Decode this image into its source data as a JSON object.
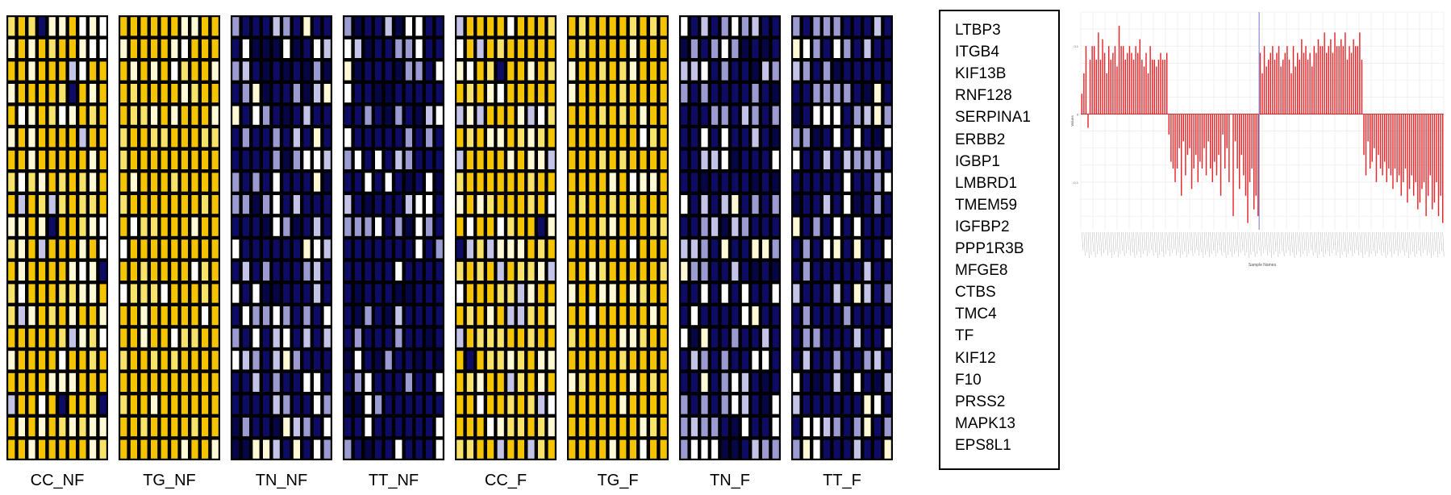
{
  "colors": {
    "yellow": "#f5c400",
    "light_yellow": "#f7e36a",
    "pale": "#fff9d6",
    "white": "#ffffff",
    "lavender": "#9b9bd2",
    "light_lavender": "#c4c4e8",
    "navy": "#0d0b63",
    "dark_navy": "#060545",
    "bar_red": "#e8262a",
    "vline": "#8c8ccf",
    "grid": "#e8e8e8"
  },
  "heatmap": {
    "rows": 20,
    "cols": 10,
    "panels": [
      {
        "label": "CC_NF",
        "dominance": "yellow"
      },
      {
        "label": "TG_NF",
        "dominance": "yellow-strong"
      },
      {
        "label": "TN_NF",
        "dominance": "navy"
      },
      {
        "label": "TT_NF",
        "dominance": "navy-strong"
      },
      {
        "label": "CC_F",
        "dominance": "yellow"
      },
      {
        "label": "TG_F",
        "dominance": "yellow-strong"
      },
      {
        "label": "TN_F",
        "dominance": "navy"
      },
      {
        "label": "TT_F",
        "dominance": "navy"
      }
    ]
  },
  "genes": [
    "LTBP3",
    "ITGB4",
    "KIF13B",
    "RNF128",
    "SERPINA1",
    "ERBB2",
    "IGBP1",
    "LMBRD1",
    "TMEM59",
    "IGFBP2",
    "PPP1R3B",
    "MFGE8",
    "CTBS",
    "TMC4",
    "TF",
    "KIF12",
    "F10",
    "PRSS2",
    "MAPK13",
    "EPS8L1"
  ],
  "chart_data": {
    "type": "bar",
    "title": "",
    "xlabel": "Sample Names",
    "ylabel": "Values",
    "ylim": [
      -0.17,
      0.15
    ],
    "yticks": [
      -0.1,
      0.0,
      0.1
    ],
    "ytick_labels": [
      "-0.1",
      "0",
      "0.1"
    ],
    "grid": true,
    "vertical_line_at_index": 86,
    "values": [
      0.03,
      0.06,
      0.1,
      -0.02,
      0.08,
      0.1,
      0.1,
      0.08,
      0.12,
      0.08,
      0.11,
      0.09,
      0.06,
      0.1,
      0.08,
      0.09,
      0.1,
      0.07,
      0.13,
      0.1,
      0.1,
      0.08,
      0.09,
      0.1,
      0.09,
      0.08,
      0.1,
      0.09,
      0.11,
      0.08,
      0.07,
      0.09,
      0.06,
      0.1,
      0.08,
      0.08,
      0.07,
      0.08,
      0.09,
      0.08,
      0.08,
      0.09,
      -0.03,
      -0.07,
      -0.08,
      -0.1,
      -0.08,
      -0.05,
      -0.12,
      -0.04,
      -0.09,
      -0.06,
      -0.05,
      -0.11,
      -0.08,
      -0.06,
      -0.1,
      -0.07,
      -0.08,
      -0.05,
      -0.09,
      -0.04,
      -0.08,
      -0.1,
      -0.07,
      -0.09,
      -0.06,
      -0.12,
      -0.03,
      -0.08,
      -0.05,
      -0.1,
      0.0,
      -0.15,
      -0.04,
      -0.08,
      -0.11,
      -0.06,
      -0.09,
      -0.12,
      -0.16,
      -0.1,
      -0.08,
      -0.14,
      -0.12,
      -0.15,
      0.09,
      0.06,
      0.1,
      0.07,
      0.08,
      0.09,
      0.1,
      0.08,
      0.09,
      0.1,
      0.07,
      0.08,
      0.09,
      0.1,
      0.08,
      0.06,
      0.1,
      0.07,
      0.09,
      0.08,
      0.11,
      0.09,
      0.1,
      0.08,
      0.09,
      0.07,
      0.1,
      0.09,
      0.11,
      0.1,
      0.1,
      0.12,
      0.09,
      0.1,
      0.11,
      0.09,
      0.12,
      0.1,
      0.1,
      0.11,
      0.1,
      0.12,
      0.08,
      0.1,
      0.09,
      0.11,
      0.1,
      0.1,
      0.12,
      0.08,
      -0.06,
      -0.09,
      -0.04,
      -0.08,
      -0.07,
      -0.05,
      -0.1,
      -0.06,
      -0.08,
      -0.09,
      -0.07,
      -0.1,
      -0.08,
      -0.09,
      -0.11,
      -0.08,
      -0.1,
      -0.09,
      -0.12,
      -0.1,
      -0.08,
      -0.13,
      -0.11,
      -0.09,
      -0.12,
      -0.1,
      -0.14,
      -0.13,
      -0.11,
      -0.1,
      -0.15,
      -0.12,
      -0.09,
      -0.14,
      -0.13,
      -0.1,
      -0.15,
      -0.12,
      -0.16
    ]
  }
}
